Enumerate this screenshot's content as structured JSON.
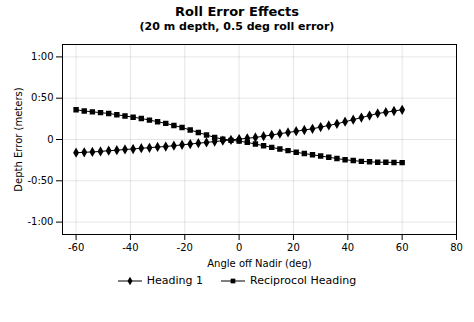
{
  "chart_data": {
    "type": "line",
    "title": "Roll Error Effects",
    "subtitle": "(20 m depth, 0.5 deg roll error)",
    "x_label": "Angle off Nadir (deg)",
    "y_label": "Depth Error (meters)",
    "x": [
      -60,
      -57,
      -54,
      -51,
      -48,
      -45,
      -42,
      -39,
      -36,
      -33,
      -30,
      -27,
      -24,
      -21,
      -18,
      -15,
      -12,
      -9,
      -6,
      -3,
      0,
      3,
      6,
      9,
      12,
      15,
      18,
      21,
      24,
      27,
      30,
      33,
      36,
      39,
      42,
      45,
      48,
      51,
      54,
      57,
      60
    ],
    "series": [
      {
        "name": "Heading 1",
        "color": "#000000",
        "marker": "diamond",
        "values": [
          -0.16,
          -0.155,
          -0.15,
          -0.145,
          -0.135,
          -0.13,
          -0.12,
          -0.115,
          -0.105,
          -0.1,
          -0.09,
          -0.085,
          -0.075,
          -0.065,
          -0.055,
          -0.045,
          -0.035,
          -0.025,
          -0.015,
          -0.005,
          0.005,
          0.015,
          0.025,
          0.04,
          0.055,
          0.07,
          0.085,
          0.1,
          0.115,
          0.13,
          0.15,
          0.17,
          0.19,
          0.215,
          0.24,
          0.265,
          0.29,
          0.315,
          0.33,
          0.345,
          0.36
        ]
      },
      {
        "name": "Reciprocol Heading",
        "color": "#000000",
        "marker": "square",
        "values": [
          0.36,
          0.345,
          0.335,
          0.325,
          0.315,
          0.3,
          0.285,
          0.27,
          0.255,
          0.235,
          0.215,
          0.195,
          0.17,
          0.145,
          0.115,
          0.085,
          0.055,
          0.025,
          0.005,
          -0.01,
          -0.02,
          -0.035,
          -0.055,
          -0.075,
          -0.095,
          -0.115,
          -0.135,
          -0.155,
          -0.17,
          -0.185,
          -0.2,
          -0.215,
          -0.23,
          -0.245,
          -0.255,
          -0.265,
          -0.27,
          -0.275,
          -0.275,
          -0.278,
          -0.28
        ]
      }
    ],
    "xlim": [
      -65,
      80
    ],
    "xticks": [
      -60,
      -40,
      -20,
      0,
      20,
      40,
      60,
      80
    ],
    "ylim": [
      -1.15,
      1.15
    ],
    "yticks": [
      {
        "value": -1.0,
        "label": "-1:00"
      },
      {
        "value": -0.5,
        "label": "-0:50"
      },
      {
        "value": 0.0,
        "label": "0"
      },
      {
        "value": 0.5,
        "label": "0:50"
      },
      {
        "value": 1.0,
        "label": "1:00"
      }
    ],
    "grid": true,
    "legend": "bottom"
  }
}
